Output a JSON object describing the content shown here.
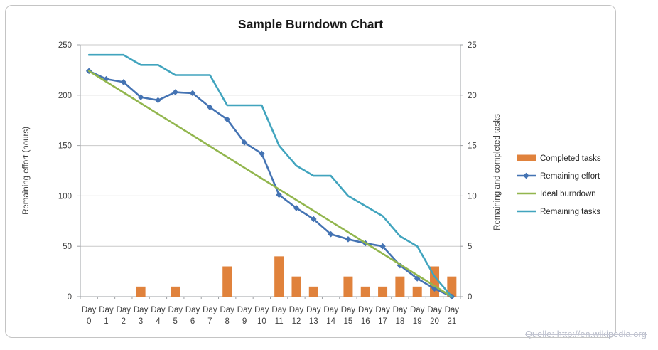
{
  "title": "Sample Burndown Chart",
  "source_note": "Quelle: http://en.wikipedia.org",
  "colors": {
    "background": "#FFFFFF",
    "gridline": "#C9C9C9",
    "axis_line": "#9EA0A4",
    "tick_label": "#3F3F3F",
    "legend_text": "#262626",
    "title_text": "#171717",
    "frame_border": "#C4C4C4",
    "source_text": "#B9BDCB"
  },
  "chart_data": {
    "type": "combo",
    "subtype": "bar+line, dual axis",
    "title": "Sample Burndown Chart",
    "categories": [
      "Day 0",
      "Day 1",
      "Day 2",
      "Day 3",
      "Day 4",
      "Day 5",
      "Day 6",
      "Day 7",
      "Day 8",
      "Day 9",
      "Day 10",
      "Day 11",
      "Day 12",
      "Day 13",
      "Day 14",
      "Day 15",
      "Day 16",
      "Day 17",
      "Day 18",
      "Day 19",
      "Day 20",
      "Day 21"
    ],
    "left_axis": {
      "title": "Remaining effort (hours)",
      "min": 0,
      "max": 250,
      "step": 50,
      "ticks": [
        0,
        50,
        100,
        150,
        200,
        250
      ]
    },
    "right_axis": {
      "title": "Remaining and completed tasks",
      "min": 0,
      "max": 25,
      "step": 5,
      "ticks": [
        0,
        5,
        10,
        15,
        20,
        25
      ]
    },
    "grid": "horizontal",
    "legend_position": "right",
    "series": [
      {
        "name": "Completed tasks",
        "type": "bar",
        "axis": "right",
        "color": "#E0823C",
        "marker": "none",
        "values": [
          0,
          0,
          0,
          1,
          0,
          1,
          0,
          0,
          3,
          0,
          0,
          4,
          2,
          1,
          0,
          2,
          1,
          1,
          2,
          1,
          3,
          2
        ]
      },
      {
        "name": "Remaining effort",
        "type": "line",
        "axis": "left",
        "color": "#4473B3",
        "marker": "diamond",
        "values": [
          224,
          216,
          213,
          198,
          195,
          203,
          202,
          188,
          176,
          153,
          142,
          101,
          88,
          77,
          62,
          57,
          53,
          50,
          31,
          18,
          8,
          0
        ]
      },
      {
        "name": "Ideal burndown",
        "type": "line",
        "axis": "left",
        "color": "#92B64E",
        "marker": "none",
        "values": [
          224,
          213.33,
          202.67,
          192,
          181.33,
          170.67,
          160,
          149.33,
          138.67,
          128,
          117.33,
          106.67,
          96,
          85.33,
          74.67,
          64,
          53.33,
          42.67,
          32,
          21.33,
          10.67,
          0
        ]
      },
      {
        "name": "Remaining tasks",
        "type": "line",
        "axis": "right",
        "color": "#41A4BE",
        "marker": "none",
        "values": [
          24,
          24,
          24,
          23,
          23,
          22,
          22,
          22,
          19,
          19,
          19,
          15,
          13,
          12,
          12,
          10,
          9,
          8,
          6,
          5,
          2,
          0
        ]
      }
    ]
  }
}
